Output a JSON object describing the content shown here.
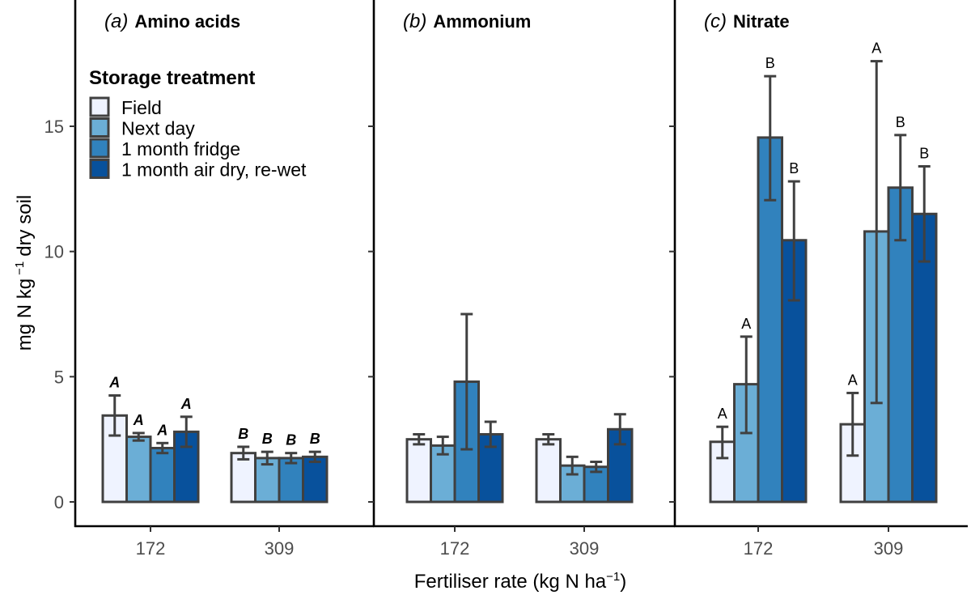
{
  "chart_data": {
    "type": "bar",
    "ylabel": "mg N kg",
    "ylabel_sup": "−1",
    "ylabel_tail": "dry soil",
    "xlabel": "Fertiliser rate (kg N ha",
    "xlabel_sup": "−1",
    "xlabel_tail": ")",
    "ylim": [
      0,
      19.5
    ],
    "yticks": [
      "0",
      "5",
      "10",
      "15"
    ],
    "categories": [
      "172",
      "309"
    ],
    "legend": {
      "title": "Storage treatment",
      "placement": "top-left",
      "entries": [
        "Field",
        "Next day",
        "1 month fridge",
        "1 month air dry, re-wet"
      ]
    },
    "colors": {
      "Field": "#eff3ff",
      "Next day": "#6baed6",
      "1 month fridge": "#3182bd",
      "1 month air dry, re-wet": "#08519c",
      "outline": "#404040"
    },
    "panels": [
      {
        "letter": "(a)",
        "name": "Amino acids",
        "label_style": "bold-italic",
        "series": [
          {
            "name": "Field",
            "values": [
              3.45,
              1.95
            ],
            "err_low": [
              2.65,
              1.7
            ],
            "err_high": [
              4.25,
              2.2
            ],
            "labels": [
              "A",
              "B"
            ]
          },
          {
            "name": "Next day",
            "values": [
              2.6,
              1.75
            ],
            "err_low": [
              2.45,
              1.5
            ],
            "err_high": [
              2.75,
              2.0
            ],
            "labels": [
              "A",
              "B"
            ]
          },
          {
            "name": "1 month fridge",
            "values": [
              2.15,
              1.75
            ],
            "err_low": [
              1.95,
              1.55
            ],
            "err_high": [
              2.35,
              1.95
            ],
            "labels": [
              "A",
              "B"
            ]
          },
          {
            "name": "1 month air dry, re-wet",
            "values": [
              2.8,
              1.8
            ],
            "err_low": [
              2.2,
              1.6
            ],
            "err_high": [
              3.4,
              2.0
            ],
            "labels": [
              "A",
              "B"
            ]
          }
        ]
      },
      {
        "letter": "(b)",
        "name": "Ammonium",
        "label_style": "none",
        "series": [
          {
            "name": "Field",
            "values": [
              2.5,
              2.5
            ],
            "err_low": [
              2.3,
              2.3
            ],
            "err_high": [
              2.7,
              2.7
            ],
            "labels": [
              "",
              ""
            ]
          },
          {
            "name": "Next day",
            "values": [
              2.25,
              1.45
            ],
            "err_low": [
              1.9,
              1.1
            ],
            "err_high": [
              2.6,
              1.8
            ],
            "labels": [
              "",
              ""
            ]
          },
          {
            "name": "1 month fridge",
            "values": [
              4.8,
              1.4
            ],
            "err_low": [
              2.1,
              1.2
            ],
            "err_high": [
              7.5,
              1.6
            ],
            "labels": [
              "",
              ""
            ]
          },
          {
            "name": "1 month air dry, re-wet",
            "values": [
              2.7,
              2.9
            ],
            "err_low": [
              2.2,
              2.3
            ],
            "err_high": [
              3.2,
              3.5
            ],
            "labels": [
              "",
              ""
            ]
          }
        ]
      },
      {
        "letter": "(c)",
        "name": "Nitrate",
        "label_style": "plain",
        "series": [
          {
            "name": "Field",
            "values": [
              2.4,
              3.1
            ],
            "err_low": [
              1.75,
              1.85
            ],
            "err_high": [
              3.0,
              4.35
            ],
            "labels": [
              "A",
              "A"
            ]
          },
          {
            "name": "Next day",
            "values": [
              4.7,
              10.8
            ],
            "err_low": [
              2.75,
              3.95
            ],
            "err_high": [
              6.6,
              17.6
            ],
            "labels": [
              "A",
              "A"
            ]
          },
          {
            "name": "1 month fridge",
            "values": [
              14.55,
              12.55
            ],
            "err_low": [
              12.05,
              10.45
            ],
            "err_high": [
              17.0,
              14.65
            ],
            "labels": [
              "B",
              "B"
            ]
          },
          {
            "name": "1 month air dry, re-wet",
            "values": [
              10.45,
              11.5
            ],
            "err_low": [
              8.05,
              9.6
            ],
            "err_high": [
              12.8,
              13.4
            ],
            "labels": [
              "B",
              "B"
            ]
          }
        ]
      }
    ]
  }
}
